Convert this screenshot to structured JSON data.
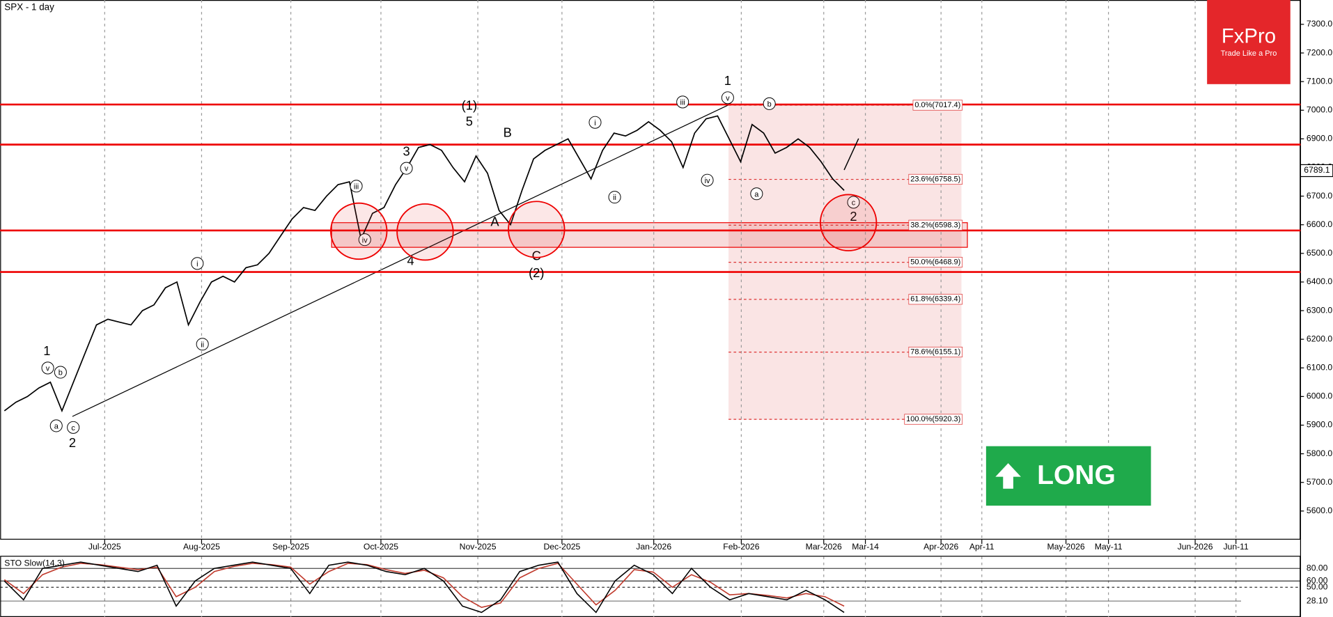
{
  "chart_data": {
    "type": "line",
    "title": "SPX - 1 day",
    "x_labels": [
      "Jul-2025",
      "Aug-2025",
      "Sep-2025",
      "Oct-2025",
      "Nov-2025",
      "Dec-2025",
      "Jan-2026",
      "Feb-2026",
      "Mar-2026",
      "Mar-14",
      "Apr-2026",
      "Apr-11",
      "May-2026",
      "May-11",
      "Jun-2026",
      "Jun-11"
    ],
    "series": [
      {
        "name": "SPX",
        "color": "#000000",
        "values": [
          5950,
          5980,
          6000,
          6030,
          6050,
          5950,
          6050,
          6150,
          6250,
          6270,
          6260,
          6250,
          6300,
          6320,
          6380,
          6400,
          6250,
          6330,
          6400,
          6420,
          6400,
          6450,
          6460,
          6500,
          6560,
          6620,
          6660,
          6650,
          6700,
          6740,
          6750,
          6550,
          6640,
          6660,
          6740,
          6800,
          6870,
          6880,
          6860,
          6800,
          6750,
          6840,
          6780,
          6650,
          6600,
          6720,
          6830,
          6860,
          6880,
          6900,
          6830,
          6760,
          6860,
          6920,
          6910,
          6930,
          6960,
          6930,
          6890,
          6800,
          6920,
          6970,
          6980,
          6900,
          6820,
          6950,
          6920,
          6850,
          6870,
          6900,
          6870,
          6820,
          6760,
          6720
        ]
      }
    ],
    "ylim": [
      5500,
      7385
    ],
    "yticks": [
      {
        "value": 5600,
        "label": "5600.0"
      },
      {
        "value": 5700,
        "label": "5700.0"
      },
      {
        "value": 5800,
        "label": "5800.0"
      },
      {
        "value": 5900,
        "label": "5900.0"
      },
      {
        "value": 6000,
        "label": "6000.0"
      },
      {
        "value": 6100,
        "label": "6100.0"
      },
      {
        "value": 6200,
        "label": "6200.0"
      },
      {
        "value": 6300,
        "label": "6300.0"
      },
      {
        "value": 6400,
        "label": "6400.0"
      },
      {
        "value": 6500,
        "label": "6500.0"
      },
      {
        "value": 6600,
        "label": "6600.0"
      },
      {
        "value": 6700,
        "label": "6700.0"
      },
      {
        "value": 6800,
        "label": "6800.0"
      },
      {
        "value": 6900,
        "label": "6900.0"
      },
      {
        "value": 7000,
        "label": "7000.0"
      },
      {
        "value": 7100,
        "label": "7100.0"
      },
      {
        "value": 7200,
        "label": "7200.0"
      },
      {
        "value": 7300,
        "label": "7300.0"
      }
    ],
    "last_price": 6789.1,
    "levels": [
      7020,
      6880,
      6580,
      6435
    ],
    "fib_levels": [
      {
        "value": 7017.4,
        "label": "0.0%(7017.4)"
      },
      {
        "value": 6758.5,
        "label": "23.6%(6758.5)"
      },
      {
        "value": 6598.3,
        "label": "38.2%(6598.3)"
      },
      {
        "value": 6468.9,
        "label": "50.0%(6468.9)"
      },
      {
        "value": 6339.4,
        "label": "61.8%(6339.4)"
      },
      {
        "value": 6155.1,
        "label": "78.6%(6155.1)"
      },
      {
        "value": 5920.3,
        "label": "100.0%(5920.3)"
      }
    ],
    "annotations": [
      {
        "text": "1"
      },
      {
        "text": "2"
      },
      {
        "text": "1"
      },
      {
        "text": "2"
      },
      {
        "text": "(1)"
      },
      {
        "text": "5"
      },
      {
        "text": "3"
      },
      {
        "text": "4"
      },
      {
        "text": "(2)"
      },
      {
        "text": "C"
      },
      {
        "text": "A"
      },
      {
        "text": "B"
      },
      {
        "text": "v",
        "circled": true
      },
      {
        "text": "b",
        "circled": true
      },
      {
        "text": "a",
        "circled": true
      },
      {
        "text": "c",
        "circled": true
      },
      {
        "text": "i",
        "circled": true
      },
      {
        "text": "ii",
        "circled": true
      },
      {
        "text": "iii",
        "circled": true
      },
      {
        "text": "iv",
        "circled": true
      },
      {
        "text": "v",
        "circled": true
      },
      {
        "text": "i",
        "circled": true
      },
      {
        "text": "ii",
        "circled": true
      },
      {
        "text": "iii",
        "circled": true
      },
      {
        "text": "iv",
        "circled": true
      },
      {
        "text": "v",
        "circled": true
      },
      {
        "text": "b",
        "circled": true
      },
      {
        "text": "a",
        "circled": true
      },
      {
        "text": "c",
        "circled": true
      }
    ],
    "signal": "LONG",
    "logo": {
      "name": "FxPro",
      "tagline": "Trade Like a Pro"
    },
    "oscillator": {
      "title": "STO Slow(14,3)",
      "ylim": [
        0,
        100
      ],
      "yticks": [
        {
          "value": 80,
          "label": "80.00"
        },
        {
          "value": 60,
          "label": "60.00"
        },
        {
          "value": 50,
          "label": "50.00"
        }
      ],
      "last_value": {
        "value": 28.1,
        "label": "28.10"
      },
      "series": [
        {
          "name": "%K",
          "color": "#000000",
          "values": [
            60,
            30,
            80,
            85,
            90,
            85,
            80,
            75,
            85,
            20,
            60,
            80,
            85,
            90,
            85,
            80,
            40,
            85,
            90,
            85,
            75,
            70,
            80,
            60,
            20,
            10,
            30,
            75,
            85,
            90,
            40,
            10,
            60,
            85,
            70,
            40,
            80,
            50,
            30,
            40,
            35,
            30,
            45,
            30,
            10
          ]
        },
        {
          "name": "%D",
          "color": "#c0392b",
          "values": [
            62,
            40,
            70,
            82,
            88,
            86,
            82,
            78,
            82,
            35,
            50,
            75,
            83,
            88,
            86,
            82,
            55,
            75,
            88,
            86,
            78,
            72,
            77,
            65,
            35,
            18,
            25,
            65,
            80,
            88,
            55,
            22,
            45,
            78,
            74,
            50,
            70,
            58,
            38,
            40,
            37,
            33,
            40,
            35,
            20
          ]
        }
      ]
    }
  }
}
